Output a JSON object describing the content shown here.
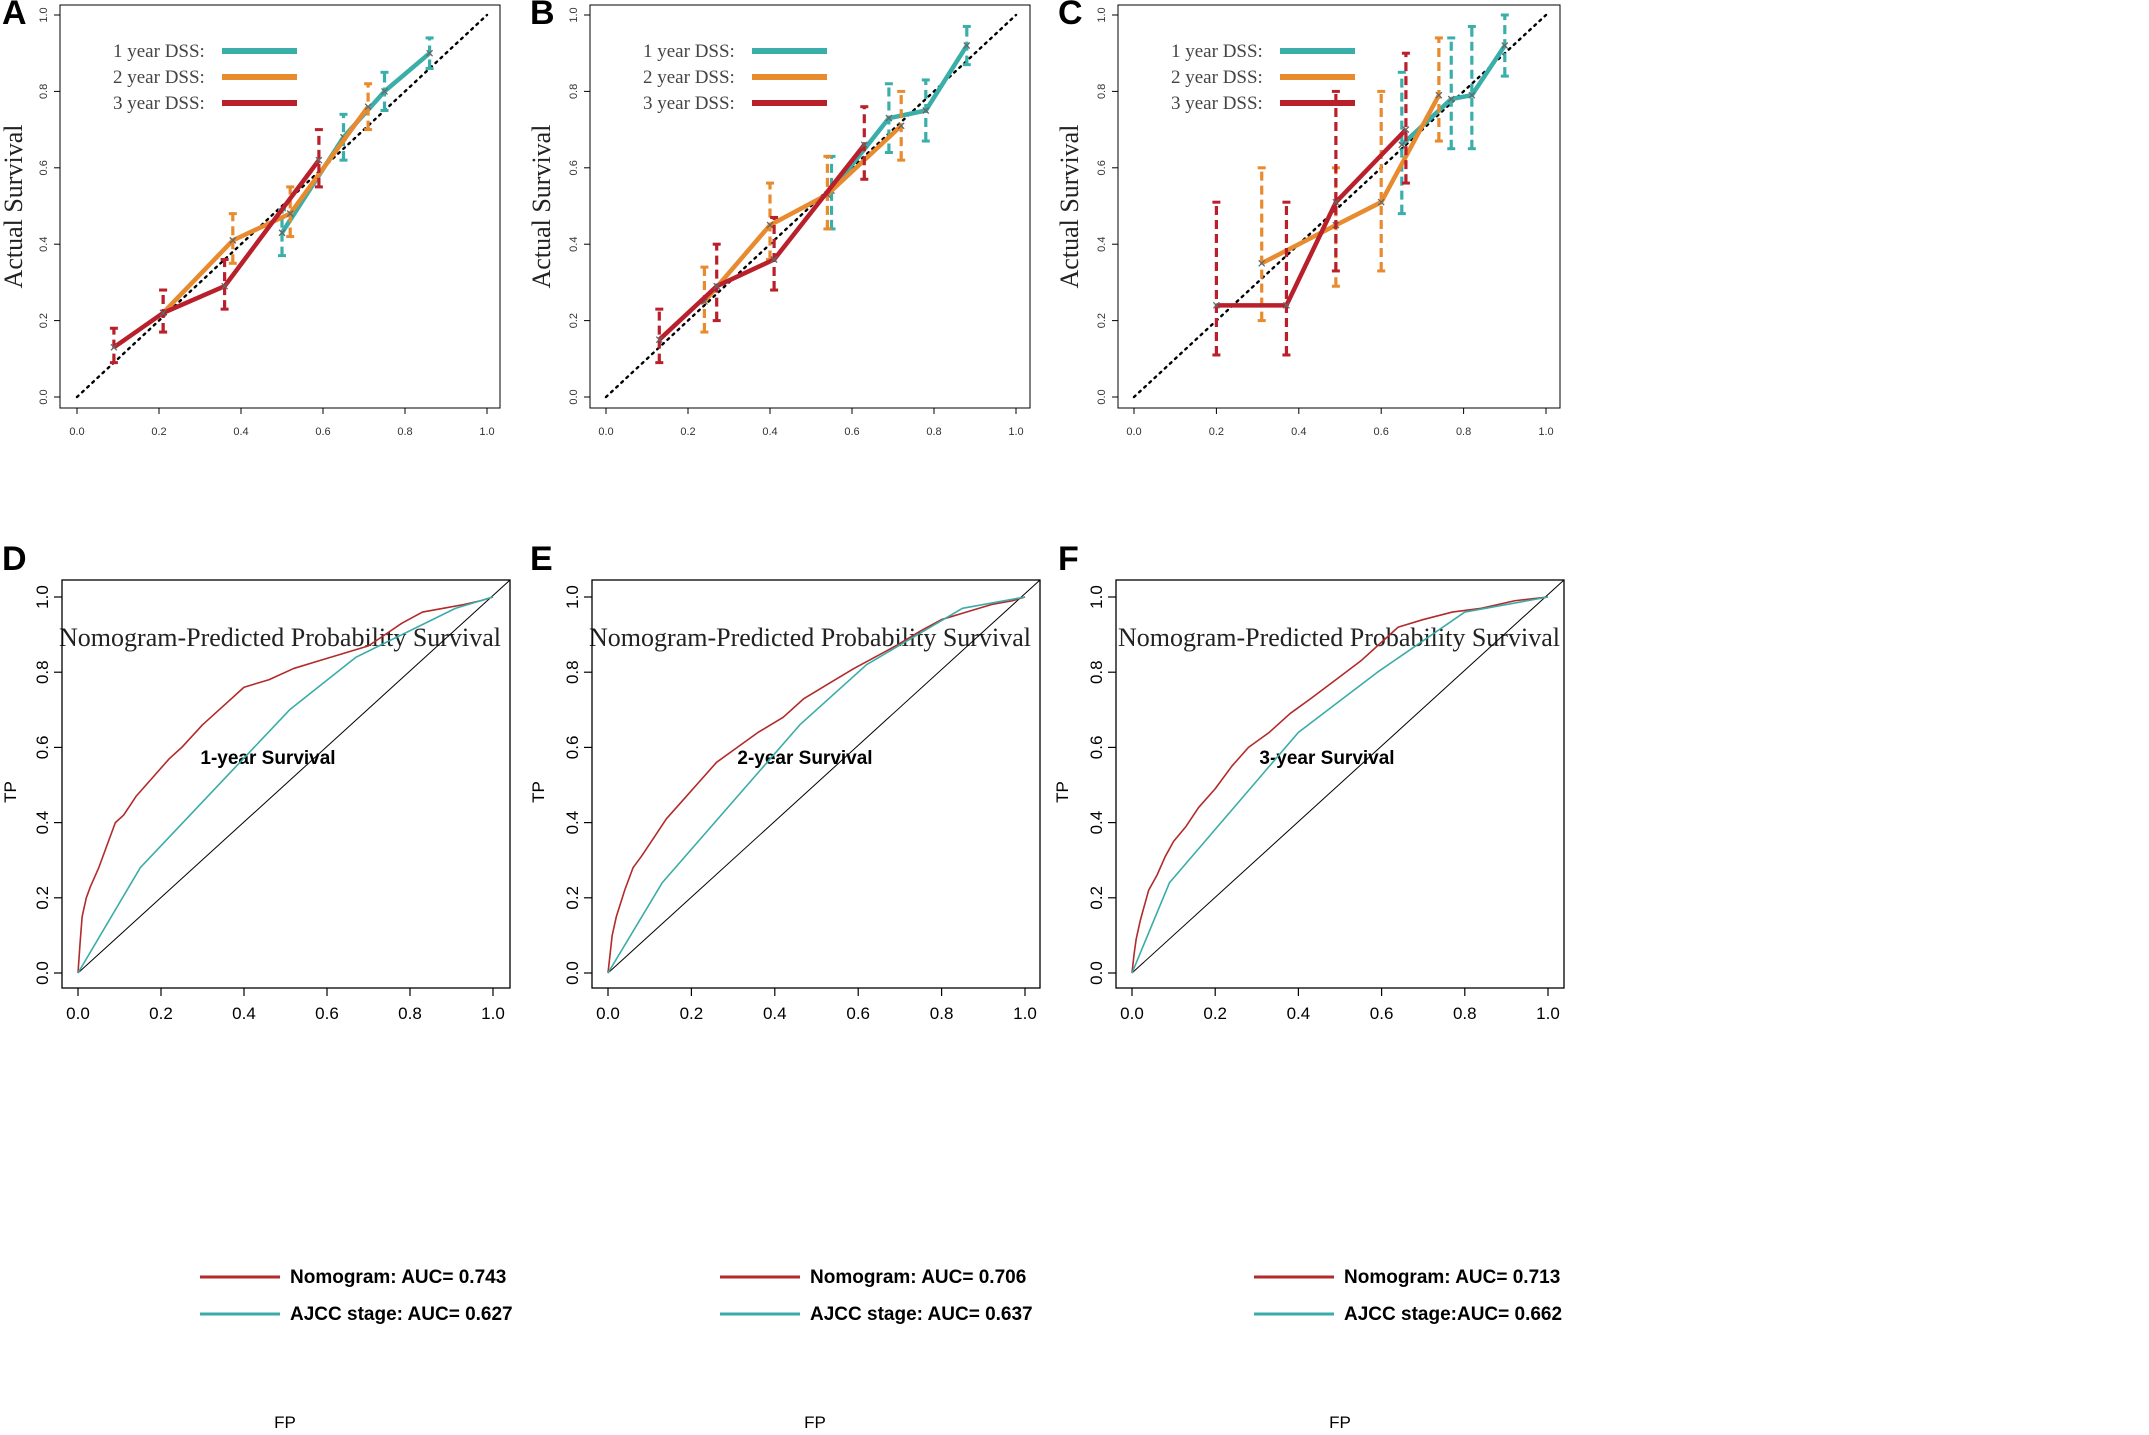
{
  "colors": {
    "year1": "#3aafaa",
    "year2": "#e88a2e",
    "year3": "#b9202c",
    "nomogram": "#b22a2a",
    "ajcc": "#3aaca8",
    "reference": "#000000"
  },
  "chart_data": [
    {
      "panel": "A",
      "type": "line",
      "title": "",
      "xlabel": "Nomogram-Predicted Probability Survival",
      "ylabel": "Actual Survival",
      "xlim": [
        0,
        1
      ],
      "ylim": [
        0,
        1
      ],
      "xticks": [
        "0.0",
        "0.2",
        "0.4",
        "0.6",
        "0.8",
        "1.0"
      ],
      "yticks": [
        "0.0",
        "0.2",
        "0.4",
        "0.6",
        "0.8",
        "1.0"
      ],
      "legend": [
        "1 year DSS:",
        "2 year DSS:",
        "3 year DSS:"
      ],
      "reference_line": "y = x (dotted)",
      "series": [
        {
          "name": "1 year DSS",
          "color_key": "year1",
          "x": [
            0.5,
            0.65,
            0.75,
            0.86
          ],
          "y": [
            0.43,
            0.68,
            0.8,
            0.9
          ],
          "lo": [
            0.37,
            0.62,
            0.75,
            0.86
          ],
          "hi": [
            0.49,
            0.74,
            0.85,
            0.94
          ]
        },
        {
          "name": "2 year DSS",
          "color_key": "year2",
          "x": [
            0.21,
            0.38,
            0.52,
            0.71
          ],
          "y": [
            0.22,
            0.41,
            0.48,
            0.76
          ],
          "lo": [
            0.17,
            0.35,
            0.42,
            0.7
          ],
          "hi": [
            0.28,
            0.48,
            0.55,
            0.82
          ]
        },
        {
          "name": "3 year DSS",
          "color_key": "year3",
          "x": [
            0.09,
            0.21,
            0.36,
            0.59
          ],
          "y": [
            0.13,
            0.22,
            0.29,
            0.62
          ],
          "lo": [
            0.09,
            0.17,
            0.23,
            0.55
          ],
          "hi": [
            0.18,
            0.28,
            0.36,
            0.7
          ]
        }
      ]
    },
    {
      "panel": "B",
      "type": "line",
      "title": "",
      "xlabel": "Nomogram-Predicted Probability Survival",
      "ylabel": "Actual Survival",
      "xlim": [
        0,
        1
      ],
      "ylim": [
        0,
        1
      ],
      "xticks": [
        "0.0",
        "0.2",
        "0.4",
        "0.6",
        "0.8",
        "1.0"
      ],
      "yticks": [
        "0.0",
        "0.2",
        "0.4",
        "0.6",
        "0.8",
        "1.0"
      ],
      "legend": [
        "1 year DSS:",
        "2 year DSS:",
        "3 year DSS:"
      ],
      "reference_line": "y = x (dotted)",
      "series": [
        {
          "name": "1 year DSS",
          "color_key": "year1",
          "x": [
            0.55,
            0.69,
            0.78,
            0.88
          ],
          "y": [
            0.54,
            0.73,
            0.75,
            0.92
          ],
          "lo": [
            0.44,
            0.64,
            0.67,
            0.87
          ],
          "hi": [
            0.63,
            0.82,
            0.83,
            0.97
          ]
        },
        {
          "name": "2 year DSS",
          "color_key": "year2",
          "x": [
            0.24,
            0.4,
            0.54,
            0.72
          ],
          "y": [
            0.25,
            0.45,
            0.53,
            0.71
          ],
          "lo": [
            0.17,
            0.36,
            0.44,
            0.62
          ],
          "hi": [
            0.34,
            0.56,
            0.63,
            0.8
          ]
        },
        {
          "name": "3 year DSS",
          "color_key": "year3",
          "x": [
            0.13,
            0.27,
            0.41,
            0.63
          ],
          "y": [
            0.15,
            0.29,
            0.36,
            0.66
          ],
          "lo": [
            0.09,
            0.2,
            0.28,
            0.57
          ],
          "hi": [
            0.23,
            0.4,
            0.47,
            0.76
          ]
        }
      ]
    },
    {
      "panel": "C",
      "type": "line",
      "title": "",
      "xlabel": "Nomogram-Predicted Probability Survival",
      "ylabel": "Actual Survival",
      "xlim": [
        0,
        1
      ],
      "ylim": [
        0,
        1
      ],
      "xticks": [
        "0.0",
        "0.2",
        "0.4",
        "0.6",
        "0.8",
        "1.0"
      ],
      "yticks": [
        "0.0",
        "0.2",
        "0.4",
        "0.6",
        "0.8",
        "1.0"
      ],
      "legend": [
        "1 year DSS:",
        "2 year DSS:",
        "3 year DSS:"
      ],
      "reference_line": "y = x (dotted)",
      "series": [
        {
          "name": "1 year DSS",
          "color_key": "year1",
          "x": [
            0.65,
            0.77,
            0.82,
            0.9
          ],
          "y": [
            0.66,
            0.78,
            0.79,
            0.92
          ],
          "lo": [
            0.48,
            0.65,
            0.65,
            0.84
          ],
          "hi": [
            0.85,
            0.94,
            0.97,
            1.0
          ]
        },
        {
          "name": "2 year DSS",
          "color_key": "year2",
          "x": [
            0.31,
            0.49,
            0.6,
            0.74
          ],
          "y": [
            0.35,
            0.45,
            0.51,
            0.79
          ],
          "lo": [
            0.2,
            0.29,
            0.33,
            0.67
          ],
          "hi": [
            0.6,
            0.6,
            0.8,
            0.94
          ]
        },
        {
          "name": "3 year DSS",
          "color_key": "year3",
          "x": [
            0.2,
            0.37,
            0.49,
            0.66
          ],
          "y": [
            0.24,
            0.24,
            0.51,
            0.7
          ],
          "lo": [
            0.11,
            0.11,
            0.33,
            0.56
          ],
          "hi": [
            0.51,
            0.51,
            0.8,
            0.9
          ]
        }
      ]
    },
    {
      "panel": "D",
      "type": "line",
      "title": "1-year Survival",
      "xlabel": "FP",
      "ylabel": "TP",
      "xlim": [
        0,
        1
      ],
      "ylim": [
        0,
        1
      ],
      "xticks": [
        "0.0",
        "0.2",
        "0.4",
        "0.6",
        "0.8",
        "1.0"
      ],
      "yticks": [
        "0.0",
        "0.2",
        "0.4",
        "0.6",
        "0.8",
        "1.0"
      ],
      "reference_line": "y = x (solid)",
      "legend": [
        "Nomogram: AUC= 0.743",
        "AJCC stage: AUC= 0.627"
      ],
      "series": [
        {
          "name": "Nomogram: AUC= 0.743",
          "color_key": "nomogram",
          "x": [
            0,
            0.005,
            0.01,
            0.02,
            0.03,
            0.05,
            0.07,
            0.09,
            0.11,
            0.14,
            0.18,
            0.22,
            0.25,
            0.3,
            0.35,
            0.4,
            0.46,
            0.52,
            0.58,
            0.64,
            0.7,
            0.74,
            0.78,
            0.83,
            0.88,
            0.93,
            0.97,
            1.0
          ],
          "y": [
            0,
            0.08,
            0.15,
            0.2,
            0.23,
            0.28,
            0.34,
            0.4,
            0.42,
            0.47,
            0.52,
            0.57,
            0.6,
            0.66,
            0.71,
            0.76,
            0.78,
            0.81,
            0.83,
            0.85,
            0.87,
            0.9,
            0.93,
            0.96,
            0.97,
            0.98,
            0.99,
            1.0
          ]
        },
        {
          "name": "AJCC stage: AUC= 0.627",
          "color_key": "ajcc",
          "x": [
            0,
            0.15,
            0.51,
            0.67,
            0.91,
            1.0
          ],
          "y": [
            0,
            0.28,
            0.7,
            0.84,
            0.97,
            1.0
          ]
        }
      ]
    },
    {
      "panel": "E",
      "type": "line",
      "title": "2-year Survival",
      "xlabel": "FP",
      "ylabel": "TP",
      "xlim": [
        0,
        1
      ],
      "ylim": [
        0,
        1
      ],
      "xticks": [
        "0.0",
        "0.2",
        "0.4",
        "0.6",
        "0.8",
        "1.0"
      ],
      "yticks": [
        "0.0",
        "0.2",
        "0.4",
        "0.6",
        "0.8",
        "1.0"
      ],
      "reference_line": "y = x (solid)",
      "legend": [
        "Nomogram: AUC= 0.706",
        "AJCC stage: AUC= 0.637"
      ],
      "series": [
        {
          "name": "Nomogram: AUC= 0.706",
          "color_key": "nomogram",
          "x": [
            0,
            0.01,
            0.02,
            0.04,
            0.06,
            0.08,
            0.11,
            0.14,
            0.18,
            0.22,
            0.26,
            0.31,
            0.36,
            0.42,
            0.47,
            0.53,
            0.59,
            0.64,
            0.69,
            0.75,
            0.8,
            0.86,
            0.92,
            0.97,
            1.0
          ],
          "y": [
            0,
            0.1,
            0.15,
            0.22,
            0.28,
            0.31,
            0.36,
            0.41,
            0.46,
            0.51,
            0.56,
            0.6,
            0.64,
            0.68,
            0.73,
            0.77,
            0.81,
            0.84,
            0.87,
            0.91,
            0.94,
            0.96,
            0.98,
            0.99,
            1.0
          ]
        },
        {
          "name": "AJCC stage: AUC= 0.637",
          "color_key": "ajcc",
          "x": [
            0,
            0.13,
            0.46,
            0.62,
            0.85,
            1.0
          ],
          "y": [
            0,
            0.24,
            0.66,
            0.82,
            0.97,
            1.0
          ]
        }
      ]
    },
    {
      "panel": "F",
      "type": "line",
      "title": "3-year Survival",
      "xlabel": "FP",
      "ylabel": "TP",
      "xlim": [
        0,
        1
      ],
      "ylim": [
        0,
        1
      ],
      "xticks": [
        "0.0",
        "0.2",
        "0.4",
        "0.6",
        "0.8",
        "1.0"
      ],
      "yticks": [
        "0.0",
        "0.2",
        "0.4",
        "0.6",
        "0.8",
        "1.0"
      ],
      "reference_line": "y = x (solid)",
      "legend": [
        "Nomogram: AUC= 0.713",
        "AJCC stage:AUC= 0.662"
      ],
      "series": [
        {
          "name": "Nomogram: AUC= 0.713",
          "color_key": "nomogram",
          "x": [
            0,
            0.005,
            0.01,
            0.02,
            0.04,
            0.06,
            0.08,
            0.1,
            0.13,
            0.16,
            0.2,
            0.24,
            0.28,
            0.33,
            0.38,
            0.43,
            0.49,
            0.55,
            0.6,
            0.64,
            0.7,
            0.77,
            0.84,
            0.92,
            1.0
          ],
          "y": [
            0,
            0.05,
            0.09,
            0.14,
            0.22,
            0.26,
            0.31,
            0.35,
            0.39,
            0.44,
            0.49,
            0.55,
            0.6,
            0.64,
            0.69,
            0.73,
            0.78,
            0.83,
            0.88,
            0.92,
            0.94,
            0.96,
            0.97,
            0.99,
            1.0
          ]
        },
        {
          "name": "AJCC stage:AUC= 0.662",
          "color_key": "ajcc",
          "x": [
            0,
            0.09,
            0.4,
            0.59,
            0.8,
            1.0
          ],
          "y": [
            0,
            0.24,
            0.64,
            0.8,
            0.96,
            1.0
          ]
        }
      ]
    }
  ]
}
